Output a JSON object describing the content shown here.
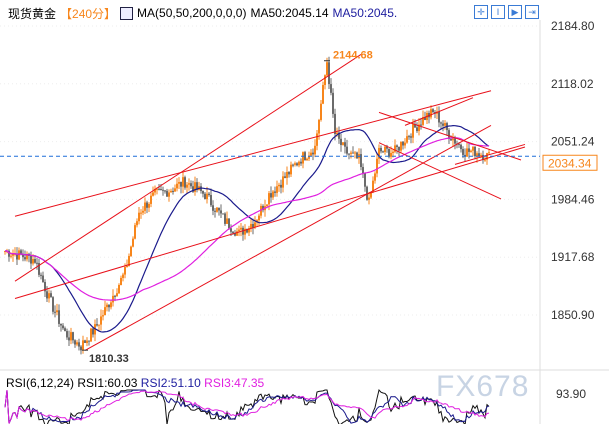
{
  "header": {
    "symbol": "现货黄金",
    "period": "【240分】",
    "ma_label": "MA(50,50,200,0,0,0)",
    "ma1": "MA50:2045.14",
    "ma2": "MA50:2045."
  },
  "toolbar": [
    "crosshair",
    "zoom-fit",
    "play",
    "exit"
  ],
  "rsi": {
    "label": "RSI(6,12,24)",
    "rsi1": "RSI1:60.03",
    "rsi2": "RSI2:51.10",
    "rsi3": "RSI3:47.35",
    "axis": "93.90"
  },
  "watermark": "FX678",
  "colors": {
    "up": "#f7861c",
    "down": "#6b6b6b",
    "ma50": "#1a1a8c",
    "ma200": "#e020e0",
    "trend": "#e8101a",
    "last": "#1e6fd9"
  },
  "chart_data": {
    "type": "line",
    "title": "现货黄金 240分",
    "ylim": [
      1810.33,
      2184.8
    ],
    "yticks": [
      2184.8,
      2118.02,
      2051.24,
      1984.46,
      1917.68,
      1850.9
    ],
    "last_price": 2034.34,
    "annotations": [
      {
        "text": "2144.68",
        "bar": 161,
        "price": 2144.68
      },
      {
        "text": "1810.33",
        "bar": 40,
        "price": 1810.33
      }
    ],
    "close_keypoints": [
      [
        0,
        1925
      ],
      [
        15,
        1915
      ],
      [
        22,
        1870
      ],
      [
        30,
        1830
      ],
      [
        38,
        1815
      ],
      [
        45,
        1835
      ],
      [
        52,
        1865
      ],
      [
        60,
        1900
      ],
      [
        67,
        1970
      ],
      [
        75,
        1990
      ],
      [
        82,
        1995
      ],
      [
        90,
        2005
      ],
      [
        100,
        1990
      ],
      [
        110,
        1960
      ],
      [
        117,
        1945
      ],
      [
        125,
        1960
      ],
      [
        132,
        1990
      ],
      [
        140,
        2010
      ],
      [
        147,
        2030
      ],
      [
        155,
        2045
      ],
      [
        161,
        2144
      ],
      [
        165,
        2060
      ],
      [
        170,
        2040
      ],
      [
        177,
        2030
      ],
      [
        182,
        1980
      ],
      [
        187,
        2040
      ],
      [
        195,
        2040
      ],
      [
        202,
        2060
      ],
      [
        210,
        2080
      ],
      [
        215,
        2085
      ],
      [
        222,
        2060
      ],
      [
        230,
        2040
      ],
      [
        235,
        2040
      ],
      [
        242,
        2034
      ]
    ],
    "trendlines": [
      [
        [
          5,
          1890
        ],
        [
          178,
          2152
        ]
      ],
      [
        [
          40,
          1810
        ],
        [
          243,
          2070
        ]
      ],
      [
        [
          5,
          1965
        ],
        [
          243,
          2110
        ]
      ],
      [
        [
          5,
          1870
        ],
        [
          260,
          2045
        ]
      ],
      [
        [
          187,
          2085
        ],
        [
          258,
          2030
        ]
      ],
      [
        [
          187,
          2050
        ],
        [
          248,
          1985
        ]
      ],
      [
        [
          225,
          2025
        ],
        [
          260,
          2048
        ]
      ],
      [
        [
          200,
          2070
        ],
        [
          234,
          2102
        ]
      ]
    ]
  }
}
